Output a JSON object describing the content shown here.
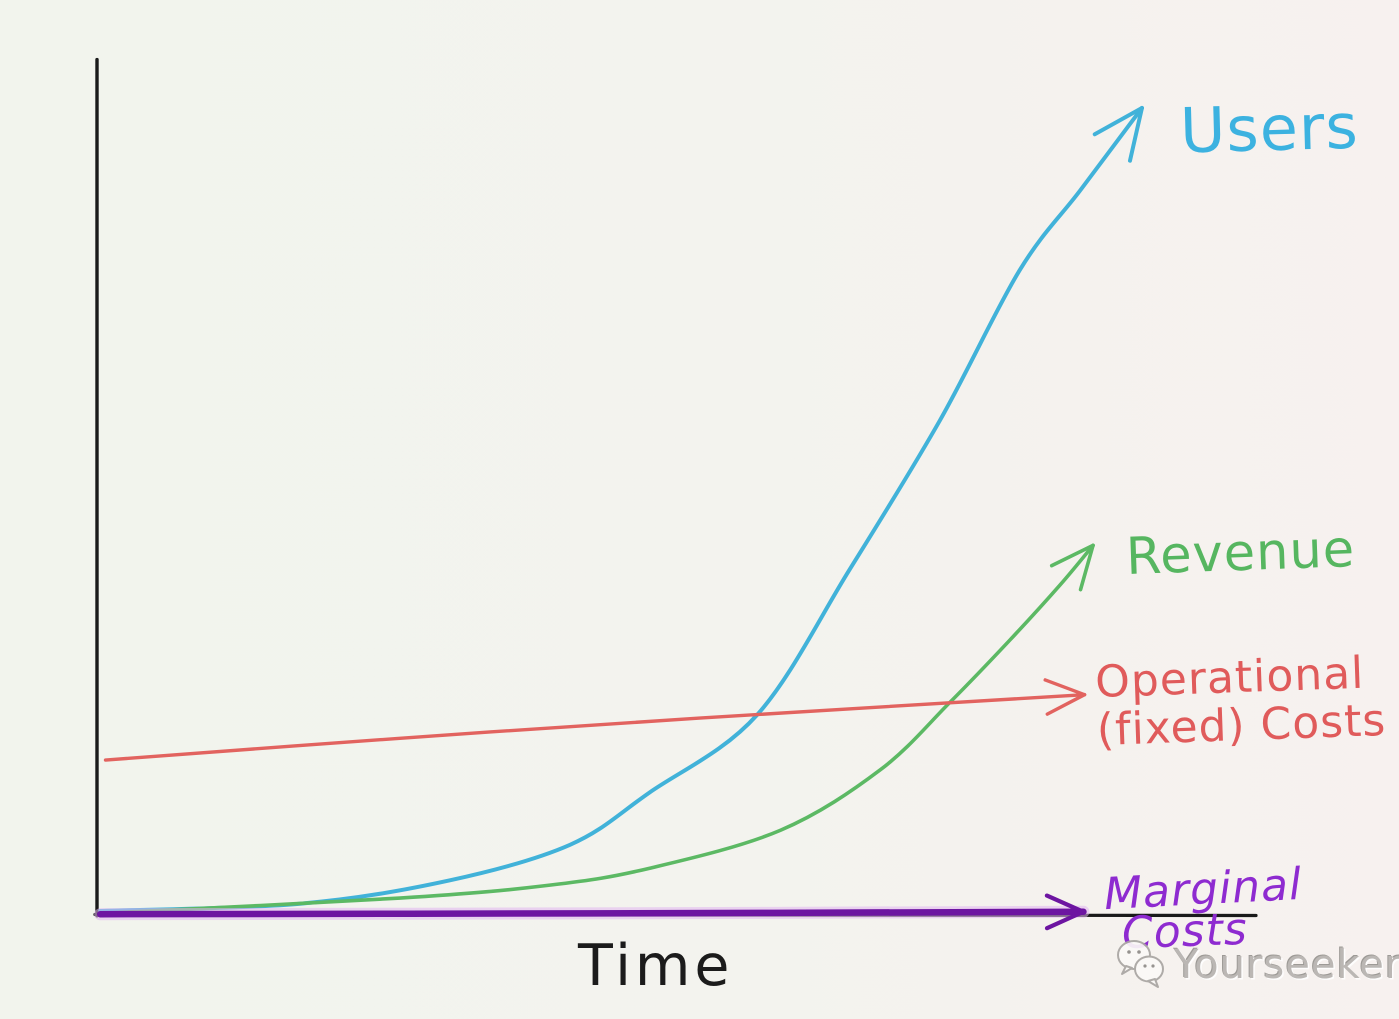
{
  "chart_data": {
    "type": "line",
    "title": "",
    "xlabel": "Time",
    "ylabel": "",
    "grid": false,
    "legend_position": "inline-right",
    "axis_color": "#1a1a1a",
    "x_range": [
      0,
      100
    ],
    "y_range": [
      0,
      100
    ],
    "series": [
      {
        "name": "Users",
        "color": "#41b2d9",
        "stroke_width": 4,
        "arrow": true,
        "arrow_len": 54,
        "points": [
          [
            0.3,
            0.5
          ],
          [
            19.1,
            1.4
          ],
          [
            33.2,
            4.3
          ],
          [
            44.5,
            8.7
          ],
          [
            52.0,
            15.2
          ],
          [
            62.1,
            24.8
          ],
          [
            70.8,
            42.8
          ],
          [
            79.3,
            61.3
          ],
          [
            86.8,
            79.9
          ],
          [
            92.5,
            89.8
          ],
          [
            98.3,
            100.0
          ]
        ]
      },
      {
        "name": "Revenue",
        "color": "#5cb964",
        "stroke_width": 3.6,
        "arrow": true,
        "arrow_len": 46,
        "points": [
          [
            0.3,
            0.2
          ],
          [
            28.5,
            2.1
          ],
          [
            42.6,
            3.7
          ],
          [
            52.0,
            5.8
          ],
          [
            64.3,
            10.5
          ],
          [
            73.7,
            18.0
          ],
          [
            80.2,
            26.3
          ],
          [
            85.9,
            34.1
          ],
          [
            90.6,
            40.9
          ],
          [
            93.7,
            45.8
          ]
        ]
      },
      {
        "name": "Operational (fixed) Costs",
        "color": "#e2635f",
        "stroke_width": 3.4,
        "arrow": true,
        "arrow_len": 42,
        "points": [
          [
            0.8,
            19.2
          ],
          [
            28.5,
            21.9
          ],
          [
            56.7,
            24.4
          ],
          [
            92.9,
            27.3
          ]
        ]
      },
      {
        "name": "Marginal Costs",
        "color": "#6d15a1",
        "glow": "#e0b4f0",
        "stroke_width": 6.5,
        "arrow": true,
        "arrow_len": 40,
        "points": [
          [
            0.3,
            0.1
          ],
          [
            46.0,
            0.2
          ],
          [
            92.8,
            0.4
          ]
        ]
      }
    ]
  },
  "labels": {
    "users": "Users",
    "revenue": "Revenue",
    "operational_line1": "Operational",
    "operational_line2": "(fixed) Costs",
    "marginal_line1": "Marginal",
    "marginal_line2": "Costs",
    "time": "Time"
  },
  "label_colors": {
    "users": "#3cb2e0",
    "revenue": "#56b660",
    "operational": "#e05b5b",
    "marginal": "#8e2bd0",
    "time": "#1b1b1b"
  },
  "watermark": {
    "text": "Yourseeker",
    "icon": "wechat-chat-bubbles-icon",
    "color": "#b6b3b0"
  }
}
